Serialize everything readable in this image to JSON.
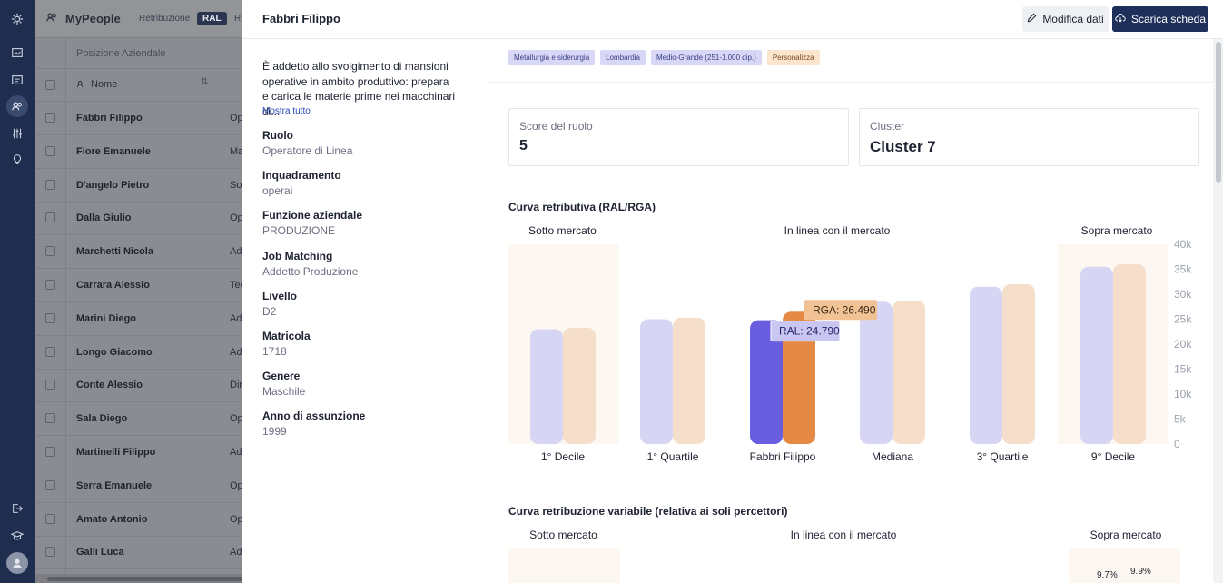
{
  "app": {
    "name": "MyPeople",
    "tabs": [
      "Retribuzione",
      "RAL",
      "RG"
    ]
  },
  "table": {
    "section": "Posizione Aziendale",
    "header": "Nome",
    "rows": [
      {
        "name": "Fabbri Filippo",
        "role": "Op"
      },
      {
        "name": "Fiore Emanuele",
        "role": "Ma"
      },
      {
        "name": "D'angelo Pietro",
        "role": "So"
      },
      {
        "name": "Dalla Giulio",
        "role": "Op"
      },
      {
        "name": "Marchetti Nicola",
        "role": "Ad"
      },
      {
        "name": "Carrara Alessio",
        "role": "Tec"
      },
      {
        "name": "Marini Diego",
        "role": "Ad"
      },
      {
        "name": "Longo Giacomo",
        "role": "Ad"
      },
      {
        "name": "Conte Alessio",
        "role": "Dir"
      },
      {
        "name": "Sala Diego",
        "role": "Op"
      },
      {
        "name": "Martinelli Filippo",
        "role": "Ad"
      },
      {
        "name": "Serra Emanuele",
        "role": "Op"
      },
      {
        "name": "Amato Antonio",
        "role": "Op"
      },
      {
        "name": "Galli Luca",
        "role": "Ad"
      }
    ]
  },
  "panel": {
    "title": "Fabbri Filippo",
    "edit_label": "Modifica dati",
    "download_label": "Scarica scheda",
    "description": "È addetto allo svolgimento di mansioni operative in ambito produttivo: prepara e carica le materie prime nei macchinari di...",
    "show_more": "Mostra tutto",
    "fields": [
      {
        "label": "Ruolo",
        "value": "Operatore di Linea"
      },
      {
        "label": "Inquadramento",
        "value": "operai"
      },
      {
        "label": "Funzione aziendale",
        "value": "PRODUZIONE"
      },
      {
        "label": "Job Matching",
        "value": "Addetto Produzione"
      },
      {
        "label": "Livello",
        "value": "D2"
      },
      {
        "label": "Matricola",
        "value": "1718"
      },
      {
        "label": "Genere",
        "value": "Maschile"
      },
      {
        "label": "Anno di assunzione",
        "value": "1999"
      }
    ],
    "chips": [
      "Metallurgia e siderurgia",
      "Lombardia",
      "Medio-Grande (251-1.000 dip.)",
      "Personalizza"
    ],
    "score_label": "Score del ruolo",
    "score_value": "5",
    "cluster_label": "Cluster",
    "cluster_value": "Cluster 7",
    "curve1_title": "Curva retributiva (RAL/RGA)",
    "curve2_title": "Curva retribuzione variabile (relativa ai soli percettori)",
    "zones": [
      "Sotto mercato",
      "In linea con il mercato",
      "Sopra mercato"
    ],
    "variable_labels": [
      "9.7%",
      "9.9%"
    ]
  },
  "chart_data": {
    "type": "bar",
    "categories": [
      "1° Decile",
      "1° Quartile",
      "Fabbri Filippo",
      "Mediana",
      "3° Quartile",
      "9° Decile"
    ],
    "series": [
      {
        "name": "RAL",
        "values": [
          23000,
          25000,
          24790,
          28500,
          31500,
          35500
        ]
      },
      {
        "name": "RGA",
        "values": [
          23300,
          25300,
          26490,
          28700,
          32000,
          36000
        ]
      }
    ],
    "ylim": [
      0,
      40000
    ],
    "ytick_labels": [
      "40k",
      "35k",
      "30k",
      "25k",
      "20k",
      "15k",
      "10k",
      "5k",
      "0"
    ],
    "annotations": [
      "RGA: 26.490",
      "RAL: 24.790"
    ],
    "colors": {
      "ral": "#d6d6f4",
      "rga": "#f6dfca",
      "ral_highlight": "#6a5ee0",
      "rga_highlight": "#e58a45",
      "zone_bg": "#fcf7f1"
    }
  }
}
